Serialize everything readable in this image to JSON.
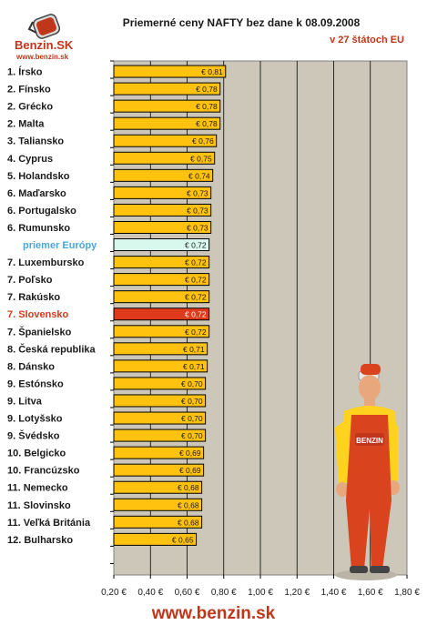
{
  "header": {
    "title": "Priemerné ceny NAFTY bez dane k 08.09.2008",
    "subtitle": "v 27 štátoch EU"
  },
  "logo": {
    "brand": "Benzin.SK",
    "url": "www.benzin.sk"
  },
  "footer": {
    "text": "www.benzin.sk"
  },
  "colors": {
    "plot_background": "#ccc7b8",
    "bar_default": "#ffc20e",
    "bar_highlight": "#e03a1c",
    "bar_average": "#d8f8ee",
    "bar_outline": "#000000",
    "average_label": "#4da6d9",
    "highlight_label": "#d53a1a",
    "brand_red": "#c0361a"
  },
  "chart_data": {
    "type": "bar",
    "orientation": "horizontal",
    "title": "Priemerné ceny NAFTY bez dane k 08.09.2008",
    "subtitle": "v 27 štátoch EU",
    "xlim": [
      0.2,
      1.8
    ],
    "x_ticks": [
      "0,20 €",
      "0,40 €",
      "0,60 €",
      "0,80 €",
      "1,00 €",
      "1,20 €",
      "1,40 €",
      "1,60 €",
      "1,80 €"
    ],
    "x_tick_values": [
      0.2,
      0.4,
      0.6,
      0.8,
      1.0,
      1.2,
      1.4,
      1.6,
      1.8
    ],
    "grid": "vertical",
    "categories": [
      "1. Írsko",
      "2. Fínsko",
      "2. Grécko",
      "2. Malta",
      "3. Taliansko",
      "4. Cyprus",
      "5. Holandsko",
      "6. Maďarsko",
      "6. Portugalsko",
      "6. Rumunsko",
      "priemer Európy",
      "7. Luxembursko",
      "7. Poľsko",
      "7. Rakúsko",
      "7. Slovensko",
      "7. Španielsko",
      "8. Česká republika",
      "8. Dánsko",
      "9. Estónsko",
      "9. Litva",
      "9. Lotyšsko",
      "9. Švédsko",
      "10. Belgicko",
      "10. Francúzsko",
      "11. Nemecko",
      "11. Slovinsko",
      "11. Veľká Británia",
      "12. Bulharsko"
    ],
    "values": [
      0.81,
      0.78,
      0.78,
      0.78,
      0.76,
      0.75,
      0.74,
      0.73,
      0.73,
      0.73,
      0.72,
      0.72,
      0.72,
      0.72,
      0.72,
      0.72,
      0.71,
      0.71,
      0.7,
      0.7,
      0.7,
      0.7,
      0.69,
      0.69,
      0.68,
      0.68,
      0.68,
      0.65
    ],
    "value_labels": [
      "€ 0,81",
      "€ 0,78",
      "€ 0,78",
      "€ 0,78",
      "€ 0,76",
      "€ 0,75",
      "€ 0,74",
      "€ 0,73",
      "€ 0,73",
      "€ 0,73",
      "€ 0,72",
      "€ 0,72",
      "€ 0,72",
      "€ 0,72",
      "€ 0,72",
      "€ 0,72",
      "€ 0,71",
      "€ 0,71",
      "€ 0,70",
      "€ 0,70",
      "€ 0,70",
      "€ 0,70",
      "€ 0,69",
      "€ 0,69",
      "€ 0,68",
      "€ 0,68",
      "€ 0,68",
      "€ 0,65"
    ],
    "highlight_category": "7. Slovensko",
    "average_category": "priemer Európy"
  }
}
